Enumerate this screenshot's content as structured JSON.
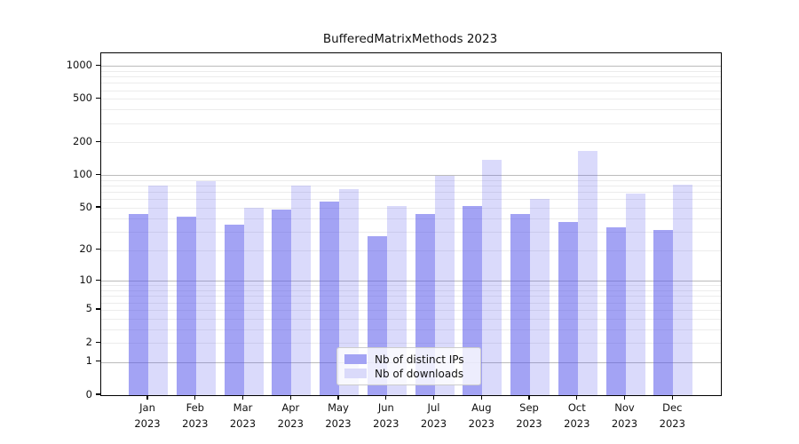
{
  "chart_data": {
    "type": "bar",
    "title": "BufferedMatrixMethods 2023",
    "categories": [
      "Jan",
      "Feb",
      "Mar",
      "Apr",
      "May",
      "Jun",
      "Jul",
      "Aug",
      "Sep",
      "Oct",
      "Nov",
      "Dec"
    ],
    "x_year_label": "2023",
    "series": [
      {
        "name": "Nb of distinct IPs",
        "color": "rgba(88,88,235,0.55)",
        "swatch_hex": "#a3a3f4",
        "values": [
          44,
          41,
          35,
          48,
          57,
          27,
          44,
          52,
          44,
          37,
          33,
          31
        ]
      },
      {
        "name": "Nb of downloads",
        "color": "rgba(88,88,235,0.22)",
        "swatch_hex": "#dadafa",
        "values": [
          81,
          88,
          50,
          81,
          74,
          52,
          98,
          140,
          60,
          168,
          68,
          82
        ]
      }
    ],
    "xlabel": "",
    "ylabel": "",
    "y_axis": {
      "scale": "log10(value+1)",
      "tick_values": [
        1000,
        500,
        200,
        100,
        50,
        20,
        10,
        5,
        2,
        1,
        0
      ],
      "tick_labels": [
        "1000",
        "500",
        "200",
        "100",
        "50",
        "20",
        "10",
        "5",
        "2",
        "1",
        "0"
      ],
      "ylim": [
        0,
        1300
      ],
      "major_gridline_values": [
        1,
        10,
        100,
        1000
      ],
      "minor_gridline_step": "2-9 per decade"
    },
    "grid": "on",
    "legend_position": "lower center",
    "colors": {
      "axis": "#000000",
      "grid_major": "#bbbbbb",
      "grid_minor": "#ececec",
      "text": "#111111"
    }
  }
}
